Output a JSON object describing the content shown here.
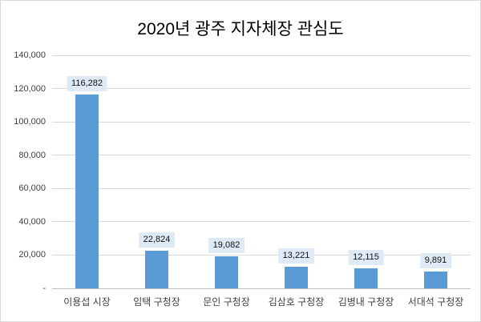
{
  "chart_data": {
    "type": "bar",
    "title": "2020년 광주 지자체장 관심도",
    "categories": [
      "이용섭 시장",
      "임택 구청장",
      "문인 구청장",
      "김삼호 구청장",
      "김병내 구청장",
      "서대석 구청장"
    ],
    "values": [
      116282,
      22824,
      19082,
      13221,
      12115,
      9891
    ],
    "value_labels": [
      "116,282",
      "22,824",
      "19,082",
      "13,221",
      "12,115",
      "9,891"
    ],
    "xlabel": "",
    "ylabel": "",
    "ylim": [
      0,
      140000
    ],
    "ytick_step": 20000,
    "ytick_labels": [
      "-",
      "20,000",
      "40,000",
      "60,000",
      "80,000",
      "100,000",
      "120,000",
      "140,000"
    ],
    "grid": true,
    "legend": "none",
    "colors": {
      "bar_fill": "#5b9bd5",
      "data_label_bg": "#deeaf6",
      "gridline": "#d9d9d9",
      "axis_line": "#bfbfbf",
      "tick_text": "#404040",
      "title_text": "#000000",
      "background": "#ffffff",
      "frame_border": "#d9d9d9"
    }
  }
}
